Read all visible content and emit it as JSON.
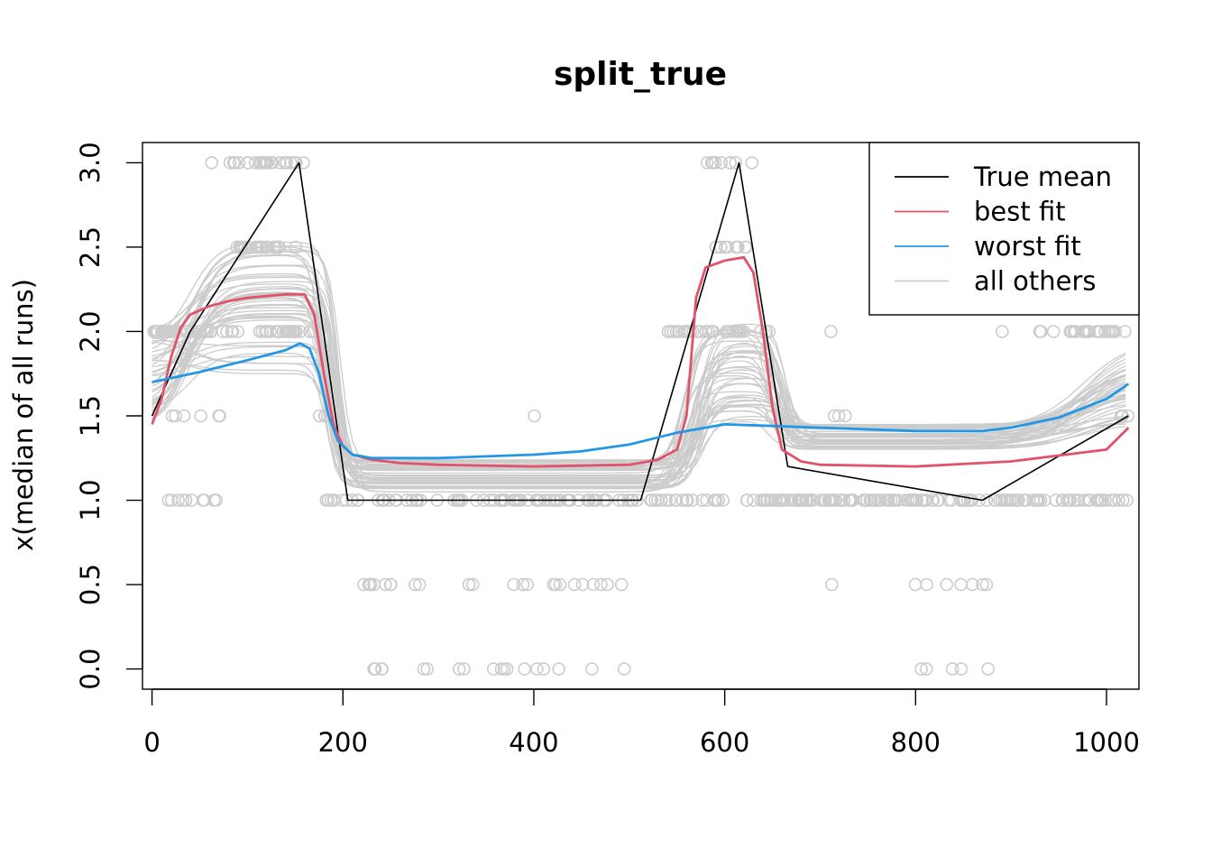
{
  "chart_data": {
    "type": "line",
    "title": "split_true",
    "xlabel": "",
    "ylabel": "x(median of all runs)",
    "xlim": [
      -10,
      1034
    ],
    "ylim": [
      -0.12,
      3.12
    ],
    "xticks": [
      0,
      200,
      400,
      600,
      800,
      1000
    ],
    "yticks": [
      0.0,
      0.5,
      1.0,
      1.5,
      2.0,
      2.5,
      3.0
    ],
    "xtick_labels": [
      "0",
      "200",
      "400",
      "600",
      "800",
      "1000"
    ],
    "ytick_labels": [
      "0.0",
      "0.5",
      "1.0",
      "1.5",
      "2.0",
      "2.5",
      "3.0"
    ],
    "legend": {
      "position": "top-right",
      "entries": [
        {
          "label": "True mean",
          "color": "#000000"
        },
        {
          "label": "best fit",
          "color": "#DF536B"
        },
        {
          "label": "worst fit",
          "color": "#2297E6"
        },
        {
          "label": "all others",
          "color": "#CCCCCC"
        }
      ]
    },
    "series": [
      {
        "name": "True mean",
        "color": "#000000",
        "x": [
          0,
          40,
          154,
          205,
          512,
          615,
          666,
          870,
          1023
        ],
        "y": [
          1.5,
          2.0,
          3.0,
          1.0,
          1.0,
          3.0,
          1.2,
          1.0,
          1.5
        ]
      },
      {
        "name": "best fit",
        "color": "#DF536B",
        "x": [
          0,
          10,
          20,
          30,
          40,
          60,
          80,
          100,
          120,
          140,
          160,
          170,
          180,
          190,
          200,
          210,
          230,
          260,
          300,
          400,
          500,
          530,
          550,
          560,
          570,
          580,
          600,
          620,
          630,
          640,
          650,
          660,
          680,
          700,
          800,
          900,
          1000,
          1023
        ],
        "y": [
          1.45,
          1.6,
          1.85,
          2.02,
          2.1,
          2.15,
          2.18,
          2.2,
          2.21,
          2.22,
          2.22,
          2.1,
          1.75,
          1.45,
          1.32,
          1.27,
          1.24,
          1.22,
          1.21,
          1.2,
          1.21,
          1.24,
          1.3,
          1.5,
          2.2,
          2.38,
          2.42,
          2.44,
          2.35,
          2.0,
          1.55,
          1.3,
          1.23,
          1.21,
          1.2,
          1.23,
          1.3,
          1.43
        ]
      },
      {
        "name": "worst fit",
        "color": "#2297E6",
        "x": [
          0,
          50,
          100,
          140,
          155,
          165,
          175,
          185,
          195,
          210,
          230,
          300,
          400,
          450,
          500,
          550,
          600,
          650,
          700,
          800,
          870,
          900,
          950,
          1000,
          1023
        ],
        "y": [
          1.7,
          1.76,
          1.83,
          1.89,
          1.93,
          1.9,
          1.75,
          1.5,
          1.35,
          1.27,
          1.25,
          1.25,
          1.27,
          1.29,
          1.33,
          1.4,
          1.45,
          1.44,
          1.43,
          1.41,
          1.41,
          1.43,
          1.49,
          1.6,
          1.69
        ]
      }
    ]
  }
}
